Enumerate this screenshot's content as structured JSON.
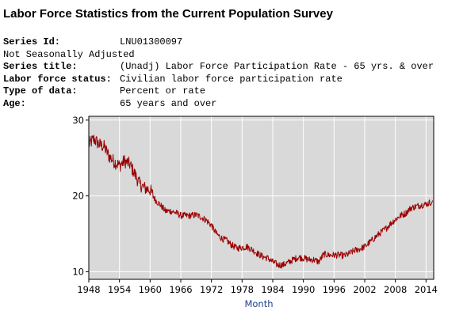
{
  "page": {
    "title": "Labor Force Statistics from the Current Population Survey"
  },
  "metadata": {
    "series_id_label": "Series Id:",
    "series_id_value": "LNU01300097",
    "seasonal_note": "Not Seasonally Adjusted",
    "series_title_label": "Series title:",
    "series_title_value": "(Unadj) Labor Force Participation Rate - 65 yrs. & over",
    "labor_force_status_label": "Labor force status:",
    "labor_force_status_value": "Civilian labor force participation rate",
    "type_of_data_label": "Type of data:",
    "type_of_data_value": "Percent or rate",
    "age_label": "Age:",
    "age_value": "65 years and over"
  },
  "colors": {
    "plot_background": "#d9d9d9",
    "gridline": "#ffffff",
    "series_line": "#990000",
    "axis_title": "#1f3f8f"
  },
  "chart_data": {
    "type": "line",
    "title": "",
    "xlabel": "Month",
    "ylabel": "",
    "xlim": [
      1948,
      2015.5
    ],
    "ylim": [
      9,
      30.5
    ],
    "grid": true,
    "x_ticks": [
      "1948",
      "1954",
      "1960",
      "1966",
      "1972",
      "1978",
      "1984",
      "1990",
      "1996",
      "2002",
      "2008",
      "2014"
    ],
    "y_ticks": [
      "10",
      "20",
      "30"
    ],
    "series": [
      {
        "x": [
          1948,
          1949,
          1950,
          1951,
          1952,
          1953,
          1954,
          1955,
          1956,
          1957,
          1958,
          1959,
          1960,
          1961,
          1962,
          1963,
          1964,
          1965,
          1966,
          1967,
          1968,
          1969,
          1970,
          1971,
          1972,
          1973,
          1974,
          1975,
          1976,
          1977,
          1978,
          1979,
          1980,
          1981,
          1982,
          1983,
          1984,
          1985,
          1986,
          1987,
          1988,
          1989,
          1990,
          1991,
          1992,
          1993,
          1994,
          1995,
          1996,
          1997,
          1998,
          1999,
          2000,
          2001,
          2002,
          2003,
          2004,
          2005,
          2006,
          2007,
          2008,
          2009,
          2010,
          2011,
          2012,
          2013,
          2014,
          2015
        ],
        "values": [
          26.8,
          27.5,
          26.8,
          26.5,
          25.2,
          24.5,
          24.0,
          24.6,
          24.2,
          22.9,
          21.5,
          21.0,
          20.8,
          19.5,
          18.8,
          18.0,
          18.0,
          17.8,
          17.4,
          17.4,
          17.4,
          17.5,
          17.2,
          16.8,
          16.1,
          15.0,
          14.4,
          14.1,
          13.5,
          13.1,
          13.2,
          13.3,
          12.9,
          12.4,
          12.0,
          11.8,
          11.3,
          10.9,
          10.9,
          11.2,
          11.6,
          11.9,
          11.8,
          11.6,
          11.6,
          11.3,
          12.3,
          12.2,
          12.2,
          12.2,
          12.1,
          12.4,
          12.8,
          13.0,
          13.3,
          13.9,
          14.5,
          15.1,
          15.6,
          16.3,
          16.9,
          17.4,
          17.7,
          18.4,
          18.6,
          18.8,
          18.9,
          19.2
        ]
      }
    ]
  }
}
